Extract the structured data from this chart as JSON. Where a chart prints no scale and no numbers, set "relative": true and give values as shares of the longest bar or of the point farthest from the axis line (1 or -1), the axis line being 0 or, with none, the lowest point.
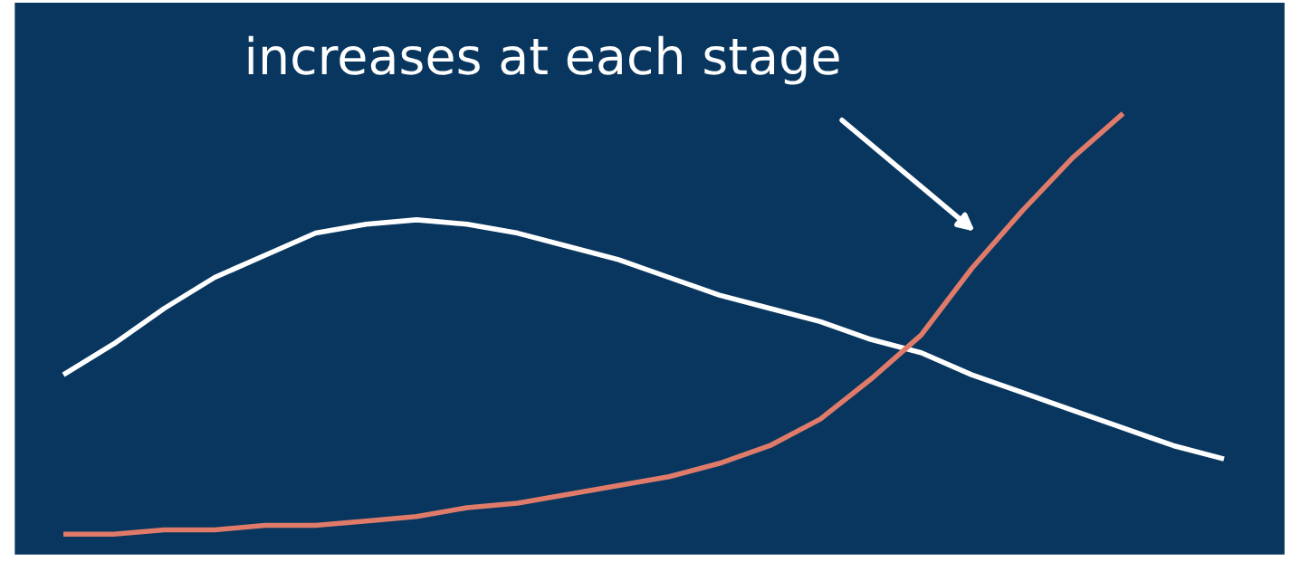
{
  "chart_data": {
    "type": "line",
    "relative": true,
    "categories": [
      null,
      null,
      null,
      null,
      null,
      null,
      null,
      null,
      null,
      null,
      null,
      null,
      null,
      null,
      null,
      null,
      null,
      null,
      null,
      null,
      null,
      null,
      null,
      null
    ],
    "series": [
      {
        "color": "#ffffff",
        "values": [
          0.41,
          0.48,
          0.56,
          0.63,
          0.68,
          0.73,
          0.75,
          0.76,
          0.75,
          0.73,
          0.7,
          0.67,
          0.63,
          0.59,
          0.56,
          0.53,
          0.49,
          0.46,
          0.41,
          0.37,
          0.33,
          0.29,
          0.25,
          0.22
        ]
      },
      {
        "color": "#e07b6a",
        "values": [
          0.05,
          0.05,
          0.06,
          0.06,
          0.07,
          0.07,
          0.08,
          0.09,
          0.11,
          0.12,
          0.14,
          0.16,
          0.18,
          0.21,
          0.25,
          0.31,
          0.4,
          0.5,
          0.65,
          0.78,
          0.9,
          1.0,
          null,
          null
        ]
      }
    ],
    "annotations": [
      "increases at each stage"
    ],
    "legend": false,
    "marker": "none",
    "line_style": "solid"
  }
}
